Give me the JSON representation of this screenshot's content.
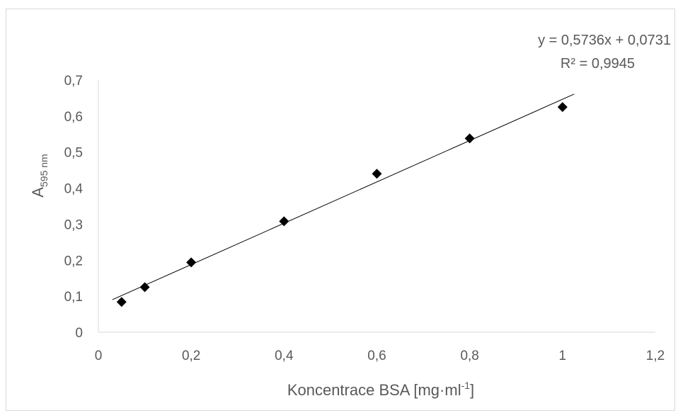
{
  "chart_data": {
    "type": "scatter",
    "title": "",
    "xlabel": {
      "main": "Koncentrace BSA [mg·ml",
      "sup": "-1",
      "close": "]"
    },
    "ylabel": {
      "main": "A",
      "sub": "595 nm"
    },
    "xlim": [
      0,
      1.2
    ],
    "ylim": [
      0,
      0.7
    ],
    "x_ticks": [
      {
        "value": 0,
        "label": "0"
      },
      {
        "value": 0.2,
        "label": "0,2"
      },
      {
        "value": 0.4,
        "label": "0,4"
      },
      {
        "value": 0.6,
        "label": "0,6"
      },
      {
        "value": 0.8,
        "label": "0,8"
      },
      {
        "value": 1.0,
        "label": "1"
      },
      {
        "value": 1.2,
        "label": "1,2"
      }
    ],
    "y_ticks": [
      {
        "value": 0,
        "label": "0"
      },
      {
        "value": 0.1,
        "label": "0,1"
      },
      {
        "value": 0.2,
        "label": "0,2"
      },
      {
        "value": 0.3,
        "label": "0,3"
      },
      {
        "value": 0.4,
        "label": "0,4"
      },
      {
        "value": 0.5,
        "label": "0,5"
      },
      {
        "value": 0.6,
        "label": "0,6"
      },
      {
        "value": 0.7,
        "label": "0,7"
      }
    ],
    "series": [
      {
        "marker": "diamond",
        "color": "#000000",
        "points": [
          {
            "x": 0.05,
            "y": 0.084
          },
          {
            "x": 0.1,
            "y": 0.125
          },
          {
            "x": 0.2,
            "y": 0.194
          },
          {
            "x": 0.4,
            "y": 0.308
          },
          {
            "x": 0.6,
            "y": 0.44
          },
          {
            "x": 0.8,
            "y": 0.538
          },
          {
            "x": 1.0,
            "y": 0.625
          }
        ]
      }
    ],
    "trendline": {
      "type": "linear",
      "slope": 0.5736,
      "intercept": 0.0731,
      "x_range": [
        0.03,
        1.025
      ],
      "equation_label": "y = 0,5736x + 0,0731",
      "r2_label": "R² = 0,9945",
      "color": "#000000"
    },
    "grid": false,
    "legend": "none",
    "axis_color": "#d9d9d9"
  }
}
